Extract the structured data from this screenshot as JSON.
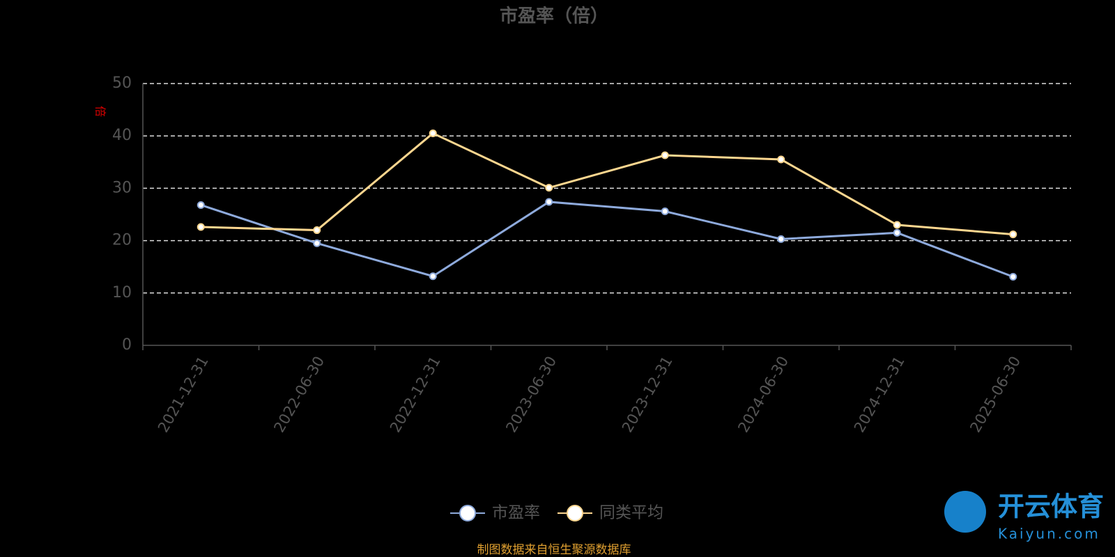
{
  "chart_data": {
    "type": "line",
    "title": "市盈率（倍）",
    "y_label": "倍",
    "categories": [
      "2021-12-31",
      "2022-06-30",
      "2022-12-31",
      "2023-06-30",
      "2023-12-31",
      "2024-06-30",
      "2024-12-31",
      "2025-06-30"
    ],
    "series": [
      {
        "name": "市盈率",
        "color": "#8eaadc",
        "values": [
          26.8,
          19.5,
          13.2,
          27.4,
          25.6,
          20.3,
          21.5,
          13.1
        ]
      },
      {
        "name": "同类平均",
        "color": "#fcd68f",
        "values": [
          22.6,
          22.0,
          40.5,
          30.1,
          36.3,
          35.5,
          23.0,
          21.2
        ]
      }
    ],
    "ylim": [
      0,
      50
    ],
    "yticks": [
      0,
      10,
      20,
      30,
      40,
      50
    ],
    "grid": true,
    "legend": "bottom",
    "source": "制图数据来自恒生聚源数据库",
    "watermark": {
      "brand": "开云体育",
      "site": "Kaiyun.com"
    }
  }
}
